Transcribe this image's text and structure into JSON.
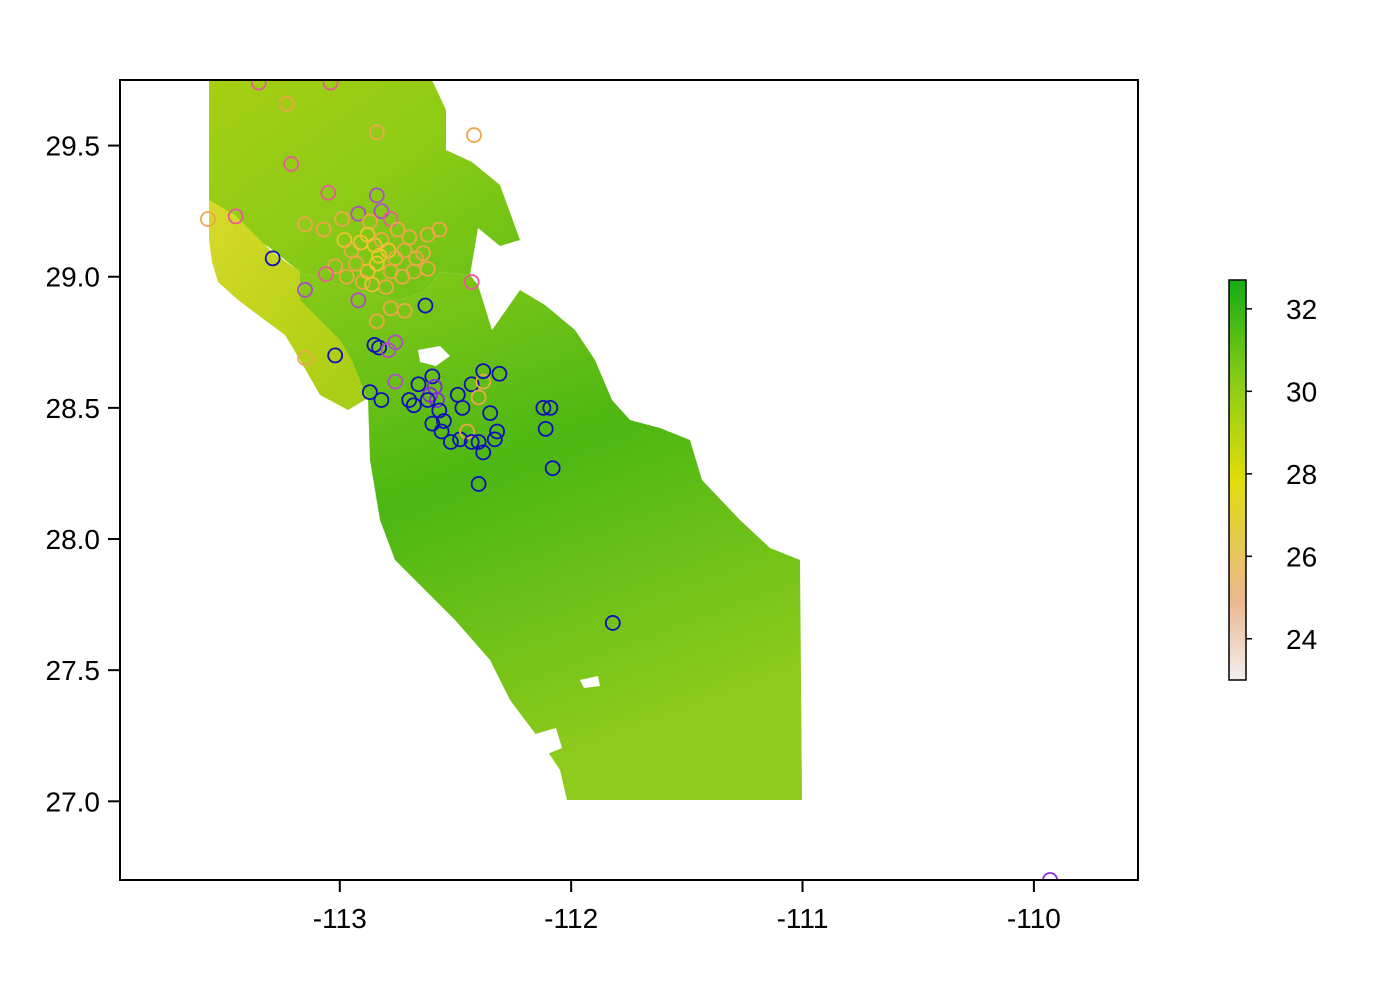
{
  "map": {
    "x_axis": {
      "ticks": [
        -113,
        -112,
        -111,
        -110
      ],
      "tick_labels": [
        "-113",
        "-112",
        "-111",
        "-110"
      ],
      "range": [
        -113.95,
        -109.55
      ]
    },
    "y_axis": {
      "ticks": [
        27.0,
        27.5,
        28.0,
        28.5,
        29.0,
        29.5
      ],
      "tick_labels": [
        "27.0",
        "27.5",
        "28.0",
        "28.5",
        "29.0",
        "29.5"
      ],
      "range": [
        26.7,
        29.75
      ]
    },
    "raster": {
      "variable_range": [
        23,
        32.7
      ],
      "colors": {
        "low": "#f3efee",
        "mid_low": "#eab78e",
        "mid": "#e1dd0c",
        "mid_high": "#88cc16",
        "high": "#14ac14"
      }
    },
    "legend": {
      "position": "right",
      "ticks": [
        24,
        26,
        28,
        30,
        32
      ],
      "tick_labels": [
        "24",
        "26",
        "28",
        "30",
        "32"
      ],
      "range": [
        23,
        32.7
      ]
    },
    "point_colors": {
      "blue": "#1010b8",
      "violet": "#8a2be2",
      "magenta": "#b04cc8",
      "pink": "#e9599a",
      "orange": "#eda64a",
      "yellow": "#f1c232"
    },
    "points": [
      {
        "lon": -113.35,
        "lat": 29.74,
        "color": "pink"
      },
      {
        "lon": -113.04,
        "lat": 29.74,
        "color": "pink"
      },
      {
        "lon": -113.23,
        "lat": 29.66,
        "color": "orange"
      },
      {
        "lon": -112.84,
        "lat": 29.55,
        "color": "orange"
      },
      {
        "lon": -112.42,
        "lat": 29.54,
        "color": "orange"
      },
      {
        "lon": -113.21,
        "lat": 29.43,
        "color": "pink"
      },
      {
        "lon": -113.05,
        "lat": 29.32,
        "color": "pink"
      },
      {
        "lon": -112.84,
        "lat": 29.31,
        "color": "magenta"
      },
      {
        "lon": -113.57,
        "lat": 29.22,
        "color": "orange"
      },
      {
        "lon": -113.45,
        "lat": 29.23,
        "color": "pink"
      },
      {
        "lon": -113.15,
        "lat": 29.2,
        "color": "orange"
      },
      {
        "lon": -113.07,
        "lat": 29.18,
        "color": "orange"
      },
      {
        "lon": -112.99,
        "lat": 29.22,
        "color": "orange"
      },
      {
        "lon": -112.92,
        "lat": 29.24,
        "color": "magenta"
      },
      {
        "lon": -112.87,
        "lat": 29.21,
        "color": "orange"
      },
      {
        "lon": -112.82,
        "lat": 29.25,
        "color": "magenta"
      },
      {
        "lon": -112.78,
        "lat": 29.22,
        "color": "pink"
      },
      {
        "lon": -112.75,
        "lat": 29.18,
        "color": "orange"
      },
      {
        "lon": -112.7,
        "lat": 29.15,
        "color": "orange"
      },
      {
        "lon": -112.62,
        "lat": 29.16,
        "color": "orange"
      },
      {
        "lon": -112.57,
        "lat": 29.18,
        "color": "orange"
      },
      {
        "lon": -112.98,
        "lat": 29.14,
        "color": "yellow"
      },
      {
        "lon": -112.95,
        "lat": 29.1,
        "color": "orange"
      },
      {
        "lon": -112.91,
        "lat": 29.13,
        "color": "yellow"
      },
      {
        "lon": -112.88,
        "lat": 29.16,
        "color": "yellow"
      },
      {
        "lon": -112.85,
        "lat": 29.12,
        "color": "yellow"
      },
      {
        "lon": -112.82,
        "lat": 29.14,
        "color": "orange"
      },
      {
        "lon": -112.79,
        "lat": 29.1,
        "color": "yellow"
      },
      {
        "lon": -112.76,
        "lat": 29.07,
        "color": "orange"
      },
      {
        "lon": -112.72,
        "lat": 29.1,
        "color": "orange"
      },
      {
        "lon": -112.67,
        "lat": 29.07,
        "color": "orange"
      },
      {
        "lon": -112.64,
        "lat": 29.09,
        "color": "orange"
      },
      {
        "lon": -112.68,
        "lat": 29.02,
        "color": "orange"
      },
      {
        "lon": -112.73,
        "lat": 29.0,
        "color": "orange"
      },
      {
        "lon": -112.78,
        "lat": 29.02,
        "color": "orange"
      },
      {
        "lon": -112.84,
        "lat": 29.05,
        "color": "yellow"
      },
      {
        "lon": -112.88,
        "lat": 29.02,
        "color": "yellow"
      },
      {
        "lon": -112.93,
        "lat": 29.05,
        "color": "orange"
      },
      {
        "lon": -112.97,
        "lat": 29.0,
        "color": "orange"
      },
      {
        "lon": -113.02,
        "lat": 29.04,
        "color": "orange"
      },
      {
        "lon": -113.06,
        "lat": 29.01,
        "color": "pink"
      },
      {
        "lon": -112.9,
        "lat": 28.98,
        "color": "orange"
      },
      {
        "lon": -112.86,
        "lat": 28.97,
        "color": "yellow"
      },
      {
        "lon": -112.83,
        "lat": 29.08,
        "color": "yellow"
      },
      {
        "lon": -112.8,
        "lat": 28.96,
        "color": "orange"
      },
      {
        "lon": -112.62,
        "lat": 29.03,
        "color": "orange"
      },
      {
        "lon": -113.15,
        "lat": 28.95,
        "color": "magenta"
      },
      {
        "lon": -113.29,
        "lat": 29.07,
        "color": "blue"
      },
      {
        "lon": -112.92,
        "lat": 28.91,
        "color": "magenta"
      },
      {
        "lon": -112.78,
        "lat": 28.88,
        "color": "orange"
      },
      {
        "lon": -112.72,
        "lat": 28.87,
        "color": "orange"
      },
      {
        "lon": -112.63,
        "lat": 28.89,
        "color": "blue"
      },
      {
        "lon": -112.43,
        "lat": 28.98,
        "color": "pink"
      },
      {
        "lon": -112.84,
        "lat": 28.83,
        "color": "orange"
      },
      {
        "lon": -112.85,
        "lat": 28.74,
        "color": "blue"
      },
      {
        "lon": -112.83,
        "lat": 28.73,
        "color": "blue"
      },
      {
        "lon": -112.79,
        "lat": 28.72,
        "color": "magenta"
      },
      {
        "lon": -112.76,
        "lat": 28.75,
        "color": "magenta"
      },
      {
        "lon": -113.02,
        "lat": 28.7,
        "color": "blue"
      },
      {
        "lon": -113.15,
        "lat": 28.69,
        "color": "orange"
      },
      {
        "lon": -112.76,
        "lat": 28.6,
        "color": "magenta"
      },
      {
        "lon": -112.87,
        "lat": 28.56,
        "color": "blue"
      },
      {
        "lon": -112.82,
        "lat": 28.53,
        "color": "blue"
      },
      {
        "lon": -112.7,
        "lat": 28.53,
        "color": "blue"
      },
      {
        "lon": -112.68,
        "lat": 28.51,
        "color": "blue"
      },
      {
        "lon": -112.66,
        "lat": 28.59,
        "color": "blue"
      },
      {
        "lon": -112.6,
        "lat": 28.62,
        "color": "blue"
      },
      {
        "lon": -112.59,
        "lat": 28.58,
        "color": "violet"
      },
      {
        "lon": -112.61,
        "lat": 28.55,
        "color": "violet"
      },
      {
        "lon": -112.58,
        "lat": 28.53,
        "color": "violet"
      },
      {
        "lon": -112.62,
        "lat": 28.53,
        "color": "blue"
      },
      {
        "lon": -112.57,
        "lat": 28.49,
        "color": "blue"
      },
      {
        "lon": -112.55,
        "lat": 28.45,
        "color": "blue"
      },
      {
        "lon": -112.6,
        "lat": 28.44,
        "color": "blue"
      },
      {
        "lon": -112.56,
        "lat": 28.41,
        "color": "blue"
      },
      {
        "lon": -112.52,
        "lat": 28.37,
        "color": "blue"
      },
      {
        "lon": -112.48,
        "lat": 28.38,
        "color": "blue"
      },
      {
        "lon": -112.45,
        "lat": 28.41,
        "color": "orange"
      },
      {
        "lon": -112.43,
        "lat": 28.37,
        "color": "blue"
      },
      {
        "lon": -112.4,
        "lat": 28.37,
        "color": "blue"
      },
      {
        "lon": -112.38,
        "lat": 28.33,
        "color": "blue"
      },
      {
        "lon": -112.33,
        "lat": 28.38,
        "color": "blue"
      },
      {
        "lon": -112.32,
        "lat": 28.41,
        "color": "blue"
      },
      {
        "lon": -112.47,
        "lat": 28.5,
        "color": "blue"
      },
      {
        "lon": -112.49,
        "lat": 28.55,
        "color": "blue"
      },
      {
        "lon": -112.43,
        "lat": 28.59,
        "color": "blue"
      },
      {
        "lon": -112.4,
        "lat": 28.54,
        "color": "orange"
      },
      {
        "lon": -112.35,
        "lat": 28.48,
        "color": "blue"
      },
      {
        "lon": -112.38,
        "lat": 28.6,
        "color": "orange"
      },
      {
        "lon": -112.38,
        "lat": 28.64,
        "color": "blue"
      },
      {
        "lon": -112.31,
        "lat": 28.63,
        "color": "blue"
      },
      {
        "lon": -112.12,
        "lat": 28.5,
        "color": "blue"
      },
      {
        "lon": -112.09,
        "lat": 28.5,
        "color": "blue"
      },
      {
        "lon": -112.11,
        "lat": 28.42,
        "color": "blue"
      },
      {
        "lon": -112.08,
        "lat": 28.27,
        "color": "blue"
      },
      {
        "lon": -112.4,
        "lat": 28.21,
        "color": "blue"
      },
      {
        "lon": -111.82,
        "lat": 27.68,
        "color": "blue"
      },
      {
        "lon": -109.93,
        "lat": 26.7,
        "color": "violet"
      }
    ]
  }
}
